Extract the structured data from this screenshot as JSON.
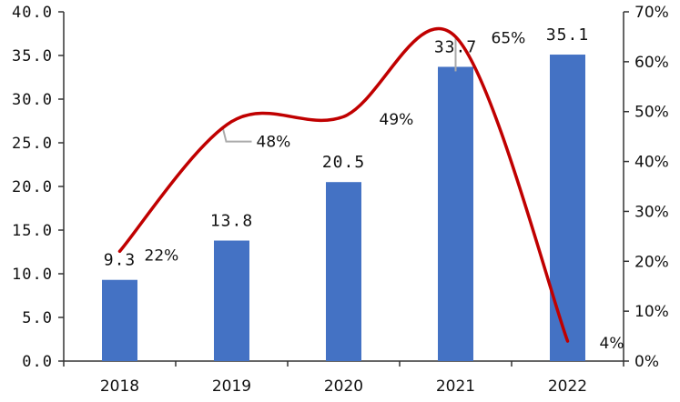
{
  "chart_data": {
    "type": "bar",
    "title": "",
    "xlabel": "",
    "ylabel": "",
    "categories": [
      "2018",
      "2019",
      "2020",
      "2021",
      "2022"
    ],
    "series": [
      {
        "type": "bar",
        "axis": "left",
        "values": [
          9.3,
          13.8,
          20.5,
          33.7,
          35.1
        ],
        "value_labels": [
          "9.3",
          "13.8",
          "20.5",
          "33.7",
          "35.1"
        ],
        "color": "#4472C4"
      },
      {
        "type": "line",
        "axis": "right",
        "smooth": true,
        "values": [
          22,
          48,
          49,
          65,
          4
        ],
        "value_labels": [
          "22%",
          "48%",
          "49%",
          "65%",
          "4%"
        ],
        "color": "#C00000"
      }
    ],
    "ylim_left": [
      0,
      40
    ],
    "yticks_left": [
      "0.0",
      "5.0",
      "10.0",
      "15.0",
      "20.0",
      "25.0",
      "30.0",
      "35.0",
      "40.0"
    ],
    "ylim_right": [
      0,
      70
    ],
    "yticks_right": [
      "0%",
      "10%",
      "20%",
      "30%",
      "40%",
      "50%",
      "60%",
      "70%"
    ],
    "grid": false,
    "legend": "none"
  }
}
